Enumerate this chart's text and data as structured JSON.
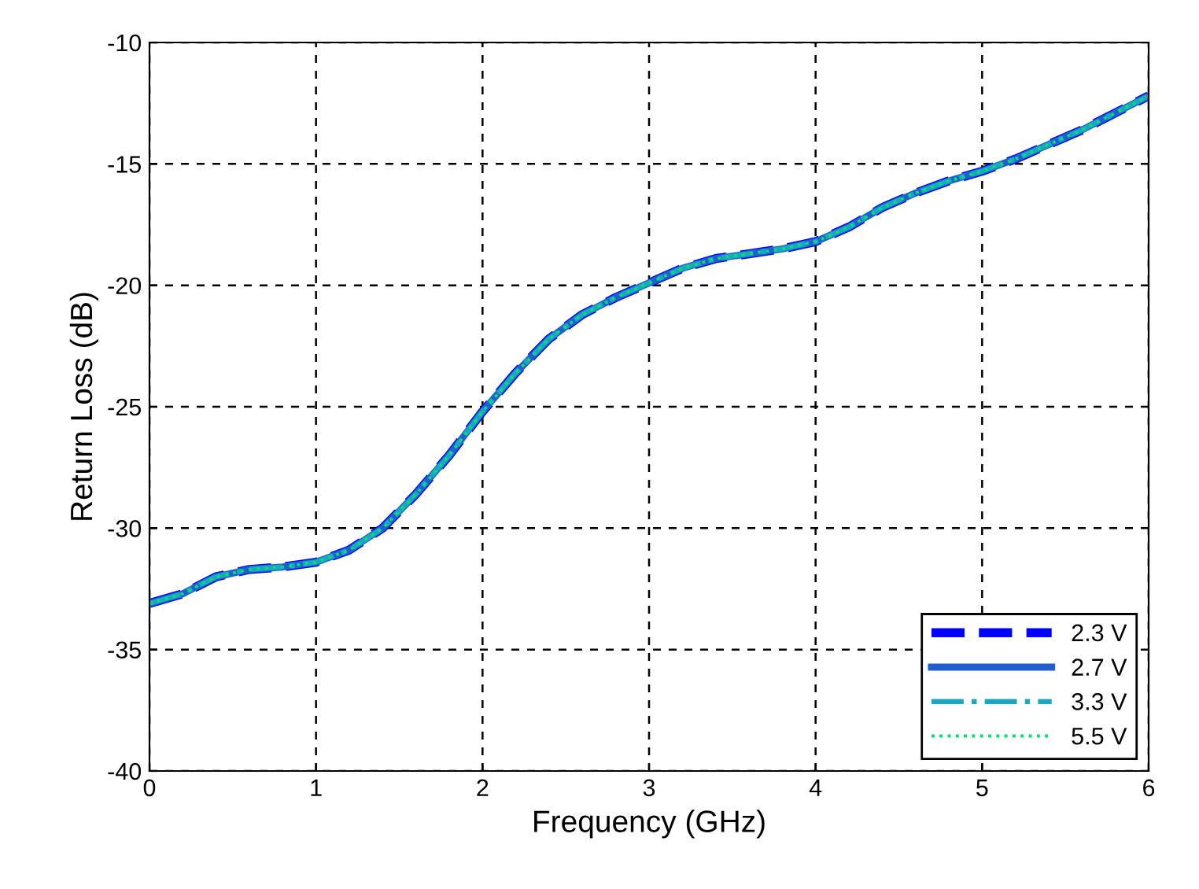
{
  "chart_data": {
    "type": "line",
    "xlabel": "Frequency (GHz)",
    "ylabel": "Return Loss (dB)",
    "x": [
      0,
      0.2,
      0.4,
      0.6,
      0.8,
      1.0,
      1.2,
      1.4,
      1.6,
      1.8,
      2.0,
      2.2,
      2.4,
      2.6,
      2.8,
      3.0,
      3.2,
      3.4,
      3.6,
      3.8,
      4.0,
      4.2,
      4.4,
      4.6,
      4.8,
      5.0,
      5.2,
      5.4,
      5.6,
      5.8,
      6.0
    ],
    "series": [
      {
        "name": "2.3 V",
        "color": "#0000ff",
        "line_style": "dashed",
        "values": [
          -33.1,
          -32.7,
          -32.0,
          -31.7,
          -31.6,
          -31.4,
          -30.9,
          -30.0,
          -28.6,
          -27.0,
          -25.2,
          -23.6,
          -22.2,
          -21.2,
          -20.5,
          -19.9,
          -19.3,
          -18.9,
          -18.7,
          -18.5,
          -18.2,
          -17.6,
          -16.8,
          -16.2,
          -15.7,
          -15.3,
          -14.8,
          -14.2,
          -13.6,
          -12.9,
          -12.2
        ]
      },
      {
        "name": "2.7 V",
        "color": "#1f5fd0",
        "line_style": "solid",
        "values": [
          -33.1,
          -32.7,
          -32.0,
          -31.7,
          -31.6,
          -31.4,
          -30.9,
          -30.0,
          -28.6,
          -27.0,
          -25.2,
          -23.6,
          -22.2,
          -21.2,
          -20.5,
          -19.9,
          -19.3,
          -18.9,
          -18.7,
          -18.5,
          -18.2,
          -17.6,
          -16.8,
          -16.2,
          -15.7,
          -15.3,
          -14.8,
          -14.2,
          -13.6,
          -12.9,
          -12.2
        ]
      },
      {
        "name": "3.3 V",
        "color": "#1aa8c0",
        "line_style": "dashdot",
        "values": [
          -33.1,
          -32.7,
          -32.0,
          -31.7,
          -31.6,
          -31.4,
          -30.9,
          -30.0,
          -28.6,
          -27.0,
          -25.2,
          -23.6,
          -22.2,
          -21.2,
          -20.5,
          -19.9,
          -19.3,
          -18.9,
          -18.7,
          -18.5,
          -18.2,
          -17.6,
          -16.8,
          -16.2,
          -15.7,
          -15.3,
          -14.8,
          -14.2,
          -13.6,
          -12.9,
          -12.2
        ]
      },
      {
        "name": "5.5 V",
        "color": "#00e070",
        "line_style": "dotted",
        "values": [
          -33.1,
          -32.7,
          -32.0,
          -31.7,
          -31.6,
          -31.4,
          -30.9,
          -30.0,
          -28.6,
          -27.0,
          -25.2,
          -23.6,
          -22.2,
          -21.2,
          -20.5,
          -19.9,
          -19.3,
          -18.9,
          -18.7,
          -18.5,
          -18.2,
          -17.6,
          -16.8,
          -16.2,
          -15.7,
          -15.3,
          -14.8,
          -14.2,
          -13.6,
          -12.9,
          -12.2
        ]
      }
    ],
    "xlim": [
      0,
      6
    ],
    "xticks": [
      0,
      1,
      2,
      3,
      4,
      5,
      6
    ],
    "ylim": [
      -40,
      -10
    ],
    "yticks": [
      -40,
      -35,
      -30,
      -25,
      -20,
      -15,
      -10
    ],
    "grid": true,
    "legend": "bottom right",
    "marker": "none"
  }
}
